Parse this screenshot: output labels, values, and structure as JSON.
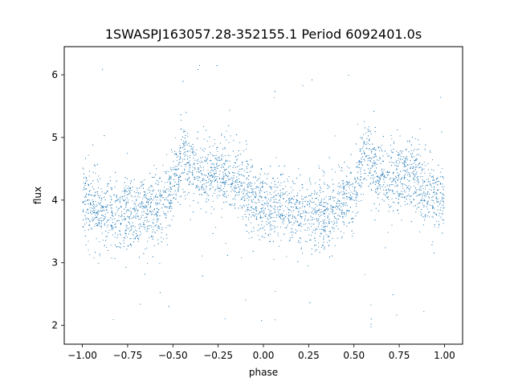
{
  "chart_data": {
    "type": "scatter",
    "title": "1SWASPJ163057.28-352155.1 Period 6092401.0s",
    "xlabel": "phase",
    "ylabel": "flux",
    "xlim": [
      -1.1,
      1.1
    ],
    "ylim": [
      1.7,
      6.45
    ],
    "xticks": [
      -1.0,
      -0.75,
      -0.5,
      -0.25,
      0.0,
      0.25,
      0.5,
      0.75,
      1.0
    ],
    "xtick_labels": [
      "−1.00",
      "−0.75",
      "−0.50",
      "−0.25",
      "0.00",
      "0.25",
      "0.50",
      "0.75",
      "1.00"
    ],
    "yticks": [
      2,
      3,
      4,
      5,
      6
    ],
    "ytick_labels": [
      "2",
      "3",
      "4",
      "5",
      "6"
    ],
    "grid": false,
    "marker_color": "#1f77b4",
    "point_count_per_cycle": 2500,
    "phase_range": [
      -1.0,
      1.0
    ],
    "baseline_flux": 3.85,
    "profile": [
      {
        "phase": -1.0,
        "mean": 3.95
      },
      {
        "phase": -0.9,
        "mean": 3.85
      },
      {
        "phase": -0.8,
        "mean": 3.75
      },
      {
        "phase": -0.7,
        "mean": 3.8
      },
      {
        "phase": -0.6,
        "mean": 3.85
      },
      {
        "phase": -0.5,
        "mean": 4.1
      },
      {
        "phase": -0.45,
        "mean": 4.75
      },
      {
        "phase": -0.4,
        "mean": 4.5
      },
      {
        "phase": -0.3,
        "mean": 4.3
      },
      {
        "phase": -0.2,
        "mean": 4.45
      },
      {
        "phase": -0.1,
        "mean": 4.15
      },
      {
        "phase": 0.0,
        "mean": 3.9
      },
      {
        "phase": 0.1,
        "mean": 3.85
      },
      {
        "phase": 0.2,
        "mean": 3.75
      },
      {
        "phase": 0.3,
        "mean": 3.8
      },
      {
        "phase": 0.4,
        "mean": 3.85
      },
      {
        "phase": 0.5,
        "mean": 4.1
      },
      {
        "phase": 0.55,
        "mean": 4.75
      },
      {
        "phase": 0.6,
        "mean": 4.5
      },
      {
        "phase": 0.7,
        "mean": 4.3
      },
      {
        "phase": 0.8,
        "mean": 4.45
      },
      {
        "phase": 0.9,
        "mean": 4.15
      },
      {
        "phase": 1.0,
        "mean": 3.95
      }
    ],
    "scatter_std": 0.28,
    "outlier_range": [
      1.9,
      6.2
    ]
  }
}
